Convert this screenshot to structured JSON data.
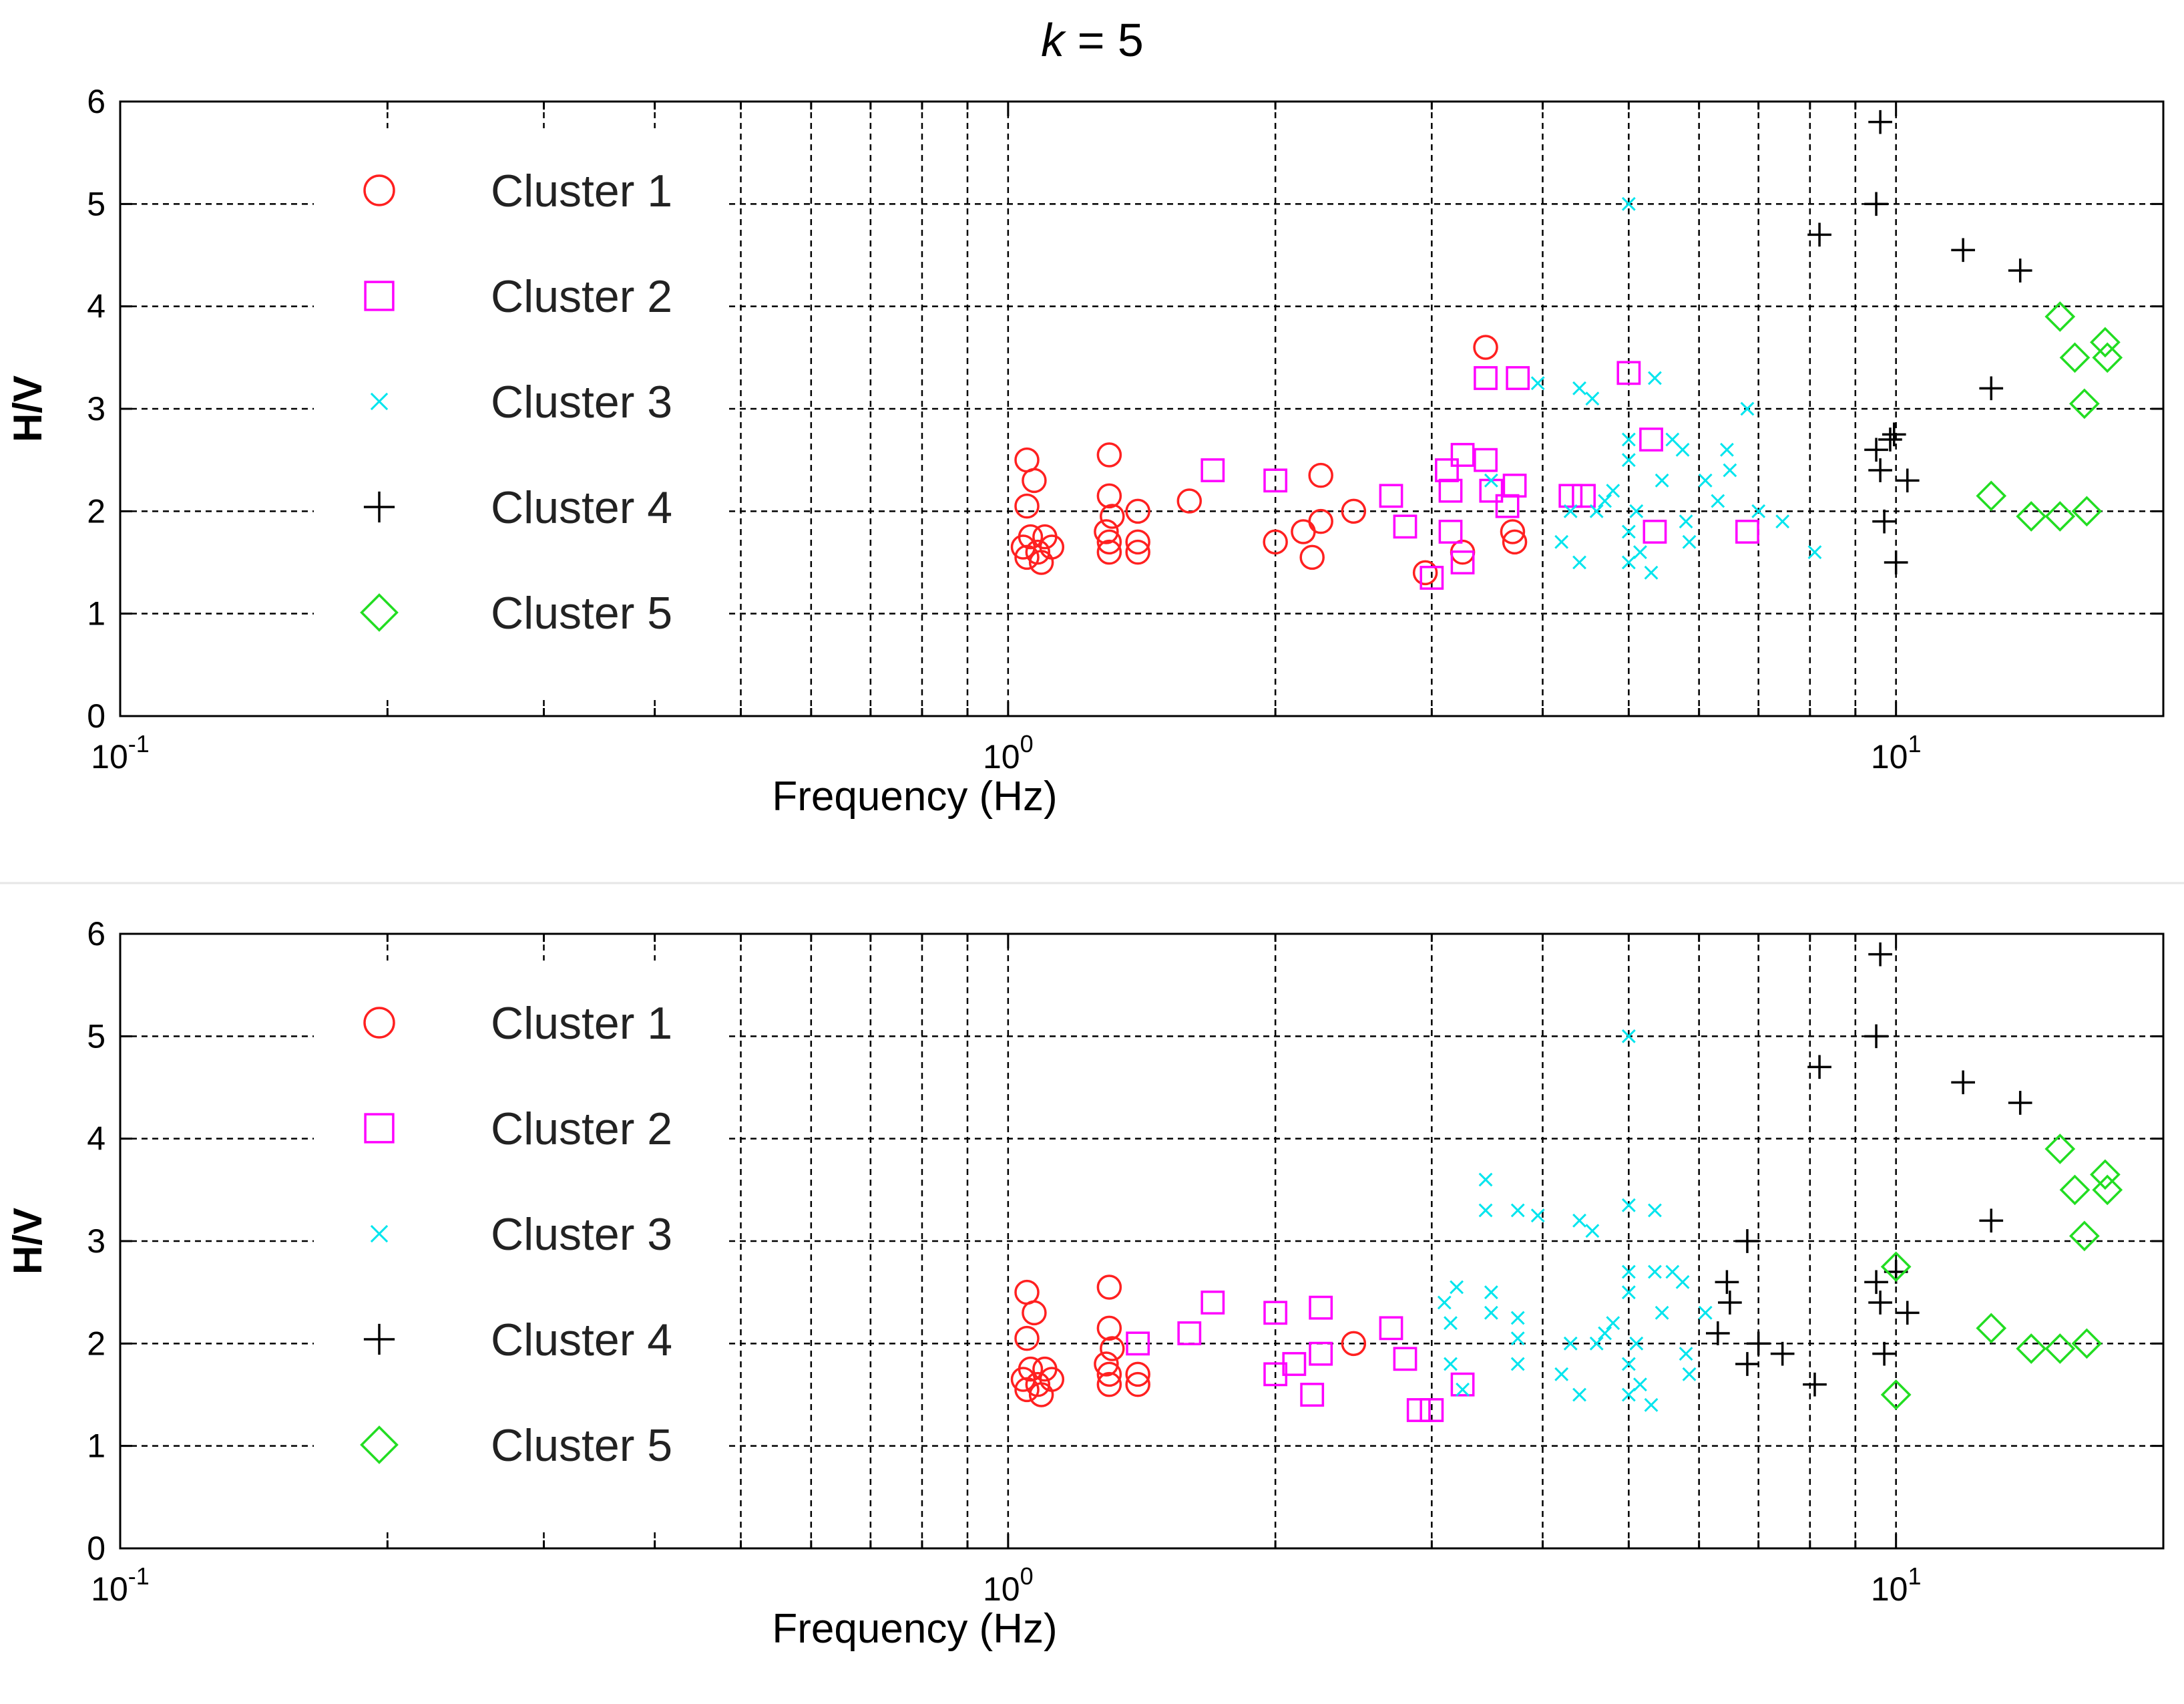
{
  "figure_title_var": "k",
  "figure_title_rest": " = 5",
  "colors": {
    "cluster1": "#ff2020",
    "cluster2": "#ff00ff",
    "cluster3": "#00e5ee",
    "cluster4": "#000000",
    "cluster5": "#22dd22"
  },
  "chart_data": [
    {
      "type": "scatter",
      "panel": "top",
      "xlabel": "Frequency (Hz)",
      "ylabel": "H/V",
      "xscale": "log",
      "xlim": [
        0.1,
        20
      ],
      "ylim": [
        0,
        6
      ],
      "xticks": [
        {
          "base": "10",
          "exp": "-1",
          "value": 0.1
        },
        {
          "base": "10",
          "exp": "0",
          "value": 1
        },
        {
          "base": "10",
          "exp": "1",
          "value": 10
        }
      ],
      "yticks": [
        "0",
        "1",
        "2",
        "3",
        "4",
        "5",
        "6"
      ],
      "grid": true,
      "legend_position": "left",
      "series": [
        {
          "name": "Cluster 1",
          "marker": "circle",
          "color": "#ff2020",
          "points": [
            [
              1.05,
              2.5
            ],
            [
              1.07,
              2.3
            ],
            [
              1.05,
              2.05
            ],
            [
              1.06,
              1.75
            ],
            [
              1.04,
              1.65
            ],
            [
              1.08,
              1.6
            ],
            [
              1.05,
              1.55
            ],
            [
              1.1,
              1.75
            ],
            [
              1.12,
              1.65
            ],
            [
              1.09,
              1.5
            ],
            [
              1.3,
              2.55
            ],
            [
              1.3,
              2.15
            ],
            [
              1.31,
              1.95
            ],
            [
              1.29,
              1.8
            ],
            [
              1.3,
              1.7
            ],
            [
              1.3,
              1.6
            ],
            [
              1.4,
              2.0
            ],
            [
              1.4,
              1.7
            ],
            [
              1.4,
              1.6
            ],
            [
              1.6,
              2.1
            ],
            [
              2.0,
              1.7
            ],
            [
              2.15,
              1.8
            ],
            [
              2.2,
              1.55
            ],
            [
              2.25,
              1.9
            ],
            [
              2.25,
              2.35
            ],
            [
              2.45,
              2.0
            ],
            [
              2.95,
              1.4
            ],
            [
              3.25,
              1.6
            ],
            [
              3.45,
              3.6
            ],
            [
              3.7,
              1.8
            ],
            [
              3.72,
              1.7
            ]
          ]
        },
        {
          "name": "Cluster 2",
          "marker": "square",
          "color": "#ff00ff",
          "points": [
            [
              1.7,
              2.4
            ],
            [
              2.0,
              2.3
            ],
            [
              2.7,
              2.15
            ],
            [
              2.8,
              1.85
            ],
            [
              3.0,
              1.35
            ],
            [
              3.12,
              2.4
            ],
            [
              3.15,
              2.2
            ],
            [
              3.15,
              1.8
            ],
            [
              3.25,
              2.55
            ],
            [
              3.25,
              1.5
            ],
            [
              3.45,
              3.3
            ],
            [
              3.45,
              2.5
            ],
            [
              3.5,
              2.2
            ],
            [
              3.65,
              2.05
            ],
            [
              3.72,
              2.25
            ],
            [
              3.75,
              3.3
            ],
            [
              4.3,
              2.15
            ],
            [
              4.45,
              2.15
            ],
            [
              5.0,
              3.35
            ],
            [
              5.3,
              2.7
            ],
            [
              5.35,
              1.8
            ],
            [
              6.8,
              1.8
            ]
          ]
        },
        {
          "name": "Cluster 3",
          "marker": "x",
          "color": "#00e5ee",
          "points": [
            [
              3.5,
              2.3
            ],
            [
              3.95,
              3.25
            ],
            [
              4.2,
              1.7
            ],
            [
              4.3,
              2.0
            ],
            [
              4.4,
              1.5
            ],
            [
              4.4,
              3.2
            ],
            [
              4.55,
              3.1
            ],
            [
              4.6,
              2.0
            ],
            [
              4.7,
              2.1
            ],
            [
              4.8,
              2.2
            ],
            [
              5.0,
              5.0
            ],
            [
              5.0,
              2.7
            ],
            [
              5.0,
              2.5
            ],
            [
              5.0,
              1.8
            ],
            [
              5.0,
              1.5
            ],
            [
              5.1,
              2.0
            ],
            [
              5.15,
              1.6
            ],
            [
              5.3,
              1.4
            ],
            [
              5.35,
              3.3
            ],
            [
              5.45,
              2.3
            ],
            [
              5.6,
              2.7
            ],
            [
              5.75,
              2.6
            ],
            [
              5.8,
              1.9
            ],
            [
              5.85,
              1.7
            ],
            [
              6.1,
              2.3
            ],
            [
              6.3,
              2.1
            ],
            [
              6.45,
              2.6
            ],
            [
              6.5,
              2.4
            ],
            [
              6.8,
              3.0
            ],
            [
              7.0,
              2.0
            ],
            [
              7.45,
              1.9
            ],
            [
              8.1,
              1.6
            ]
          ]
        },
        {
          "name": "Cluster 4",
          "marker": "plus",
          "color": "#000000",
          "points": [
            [
              8.2,
              4.7
            ],
            [
              9.5,
              5.0
            ],
            [
              9.6,
              5.8
            ],
            [
              9.5,
              2.6
            ],
            [
              9.6,
              2.4
            ],
            [
              9.7,
              1.9
            ],
            [
              9.85,
              2.7
            ],
            [
              9.95,
              2.75
            ],
            [
              10.0,
              1.5
            ],
            [
              10.3,
              2.3
            ],
            [
              11.9,
              4.55
            ],
            [
              12.8,
              3.2
            ],
            [
              13.8,
              4.35
            ]
          ]
        },
        {
          "name": "Cluster 5",
          "marker": "diamond",
          "color": "#22dd22",
          "points": [
            [
              12.8,
              2.15
            ],
            [
              14.2,
              1.95
            ],
            [
              15.3,
              3.9
            ],
            [
              15.3,
              1.95
            ],
            [
              15.9,
              3.5
            ],
            [
              16.3,
              3.05
            ],
            [
              16.4,
              2.0
            ],
            [
              17.2,
              3.65
            ],
            [
              17.3,
              3.5
            ]
          ]
        }
      ]
    },
    {
      "type": "scatter",
      "panel": "bottom",
      "xlabel": "Frequency (Hz)",
      "ylabel": "H/V",
      "xscale": "log",
      "xlim": [
        0.1,
        20
      ],
      "ylim": [
        0,
        6
      ],
      "xticks": [
        {
          "base": "10",
          "exp": "-1",
          "value": 0.1
        },
        {
          "base": "10",
          "exp": "0",
          "value": 1
        },
        {
          "base": "10",
          "exp": "1",
          "value": 10
        }
      ],
      "yticks": [
        "0",
        "1",
        "2",
        "3",
        "4",
        "5",
        "6"
      ],
      "grid": true,
      "legend_position": "left",
      "series": [
        {
          "name": "Cluster 1",
          "marker": "circle",
          "color": "#ff2020",
          "points": [
            [
              1.05,
              2.5
            ],
            [
              1.07,
              2.3
            ],
            [
              1.05,
              2.05
            ],
            [
              1.06,
              1.75
            ],
            [
              1.04,
              1.65
            ],
            [
              1.08,
              1.6
            ],
            [
              1.05,
              1.55
            ],
            [
              1.1,
              1.75
            ],
            [
              1.12,
              1.65
            ],
            [
              1.09,
              1.5
            ],
            [
              1.3,
              2.55
            ],
            [
              1.3,
              2.15
            ],
            [
              1.31,
              1.95
            ],
            [
              1.29,
              1.8
            ],
            [
              1.3,
              1.7
            ],
            [
              1.3,
              1.6
            ],
            [
              1.4,
              1.7
            ],
            [
              1.4,
              1.6
            ],
            [
              2.45,
              2.0
            ]
          ]
        },
        {
          "name": "Cluster 2",
          "marker": "square",
          "color": "#ff00ff",
          "points": [
            [
              1.4,
              2.0
            ],
            [
              1.6,
              2.1
            ],
            [
              1.7,
              2.4
            ],
            [
              2.0,
              2.3
            ],
            [
              2.0,
              1.7
            ],
            [
              2.1,
              1.8
            ],
            [
              2.2,
              1.5
            ],
            [
              2.25,
              1.9
            ],
            [
              2.25,
              2.35
            ],
            [
              2.7,
              2.15
            ],
            [
              2.8,
              1.85
            ],
            [
              2.9,
              1.35
            ],
            [
              3.0,
              1.35
            ],
            [
              3.25,
              1.6
            ]
          ]
        },
        {
          "name": "Cluster 3",
          "marker": "x",
          "color": "#00e5ee",
          "points": [
            [
              3.1,
              2.4
            ],
            [
              3.15,
              2.2
            ],
            [
              3.15,
              1.8
            ],
            [
              3.2,
              2.55
            ],
            [
              3.25,
              1.55
            ],
            [
              3.45,
              3.6
            ],
            [
              3.45,
              3.3
            ],
            [
              3.5,
              2.5
            ],
            [
              3.5,
              2.3
            ],
            [
              3.75,
              2.05
            ],
            [
              3.75,
              1.8
            ],
            [
              3.75,
              2.25
            ],
            [
              3.75,
              3.3
            ],
            [
              3.95,
              3.25
            ],
            [
              4.2,
              1.7
            ],
            [
              4.3,
              2.0
            ],
            [
              4.4,
              1.5
            ],
            [
              4.4,
              3.2
            ],
            [
              4.55,
              3.1
            ],
            [
              4.6,
              2.0
            ],
            [
              4.7,
              2.1
            ],
            [
              4.8,
              2.2
            ],
            [
              5.0,
              5.0
            ],
            [
              5.0,
              3.35
            ],
            [
              5.0,
              2.7
            ],
            [
              5.0,
              2.5
            ],
            [
              5.0,
              1.8
            ],
            [
              5.0,
              1.5
            ],
            [
              5.1,
              2.0
            ],
            [
              5.15,
              1.6
            ],
            [
              5.3,
              1.4
            ],
            [
              5.35,
              3.3
            ],
            [
              5.35,
              2.7
            ],
            [
              5.45,
              2.3
            ],
            [
              5.6,
              2.7
            ],
            [
              5.75,
              2.6
            ],
            [
              5.8,
              1.9
            ],
            [
              5.85,
              1.7
            ],
            [
              6.1,
              2.3
            ]
          ]
        },
        {
          "name": "Cluster 4",
          "marker": "plus",
          "color": "#000000",
          "points": [
            [
              6.45,
              2.6
            ],
            [
              6.5,
              2.4
            ],
            [
              6.3,
              2.1
            ],
            [
              6.8,
              3.0
            ],
            [
              6.8,
              1.8
            ],
            [
              7.0,
              2.0
            ],
            [
              7.45,
              1.9
            ],
            [
              8.1,
              1.6
            ],
            [
              8.2,
              4.7
            ],
            [
              9.5,
              5.0
            ],
            [
              9.6,
              5.8
            ],
            [
              9.5,
              2.6
            ],
            [
              9.6,
              2.4
            ],
            [
              9.7,
              1.9
            ],
            [
              10.0,
              2.7
            ],
            [
              10.3,
              2.3
            ],
            [
              11.9,
              4.55
            ],
            [
              12.8,
              3.2
            ],
            [
              13.8,
              4.35
            ]
          ]
        },
        {
          "name": "Cluster 5",
          "marker": "diamond",
          "color": "#22dd22",
          "points": [
            [
              10.0,
              2.75
            ],
            [
              10.0,
              1.5
            ],
            [
              12.8,
              2.15
            ],
            [
              14.2,
              1.95
            ],
            [
              15.3,
              3.9
            ],
            [
              15.3,
              1.95
            ],
            [
              15.9,
              3.5
            ],
            [
              16.3,
              3.05
            ],
            [
              16.4,
              2.0
            ],
            [
              17.2,
              3.65
            ],
            [
              17.3,
              3.5
            ]
          ]
        }
      ]
    }
  ]
}
